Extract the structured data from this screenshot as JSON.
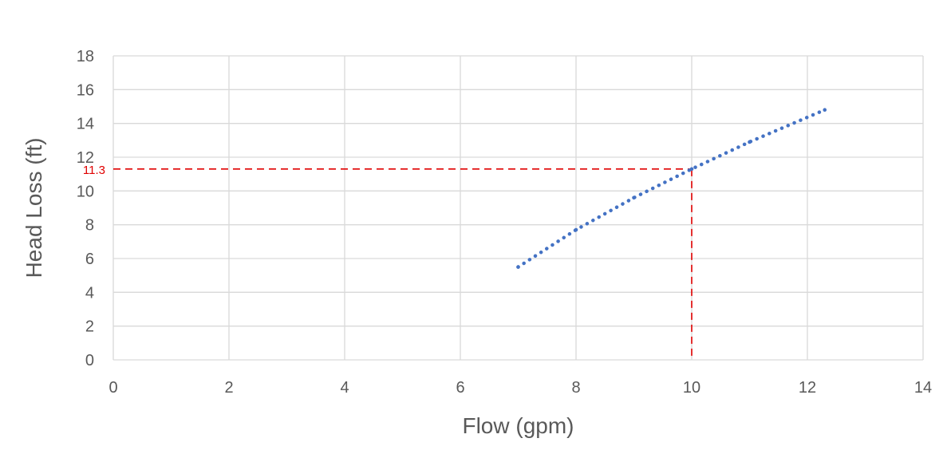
{
  "chart_data": {
    "type": "scatter",
    "title": "",
    "xlabel": "Flow (gpm)",
    "ylabel": "Head Loss (ft)",
    "xlim": [
      0,
      14
    ],
    "ylim": [
      0,
      18
    ],
    "x_ticks": [
      0,
      2,
      4,
      6,
      8,
      10,
      12,
      14
    ],
    "y_ticks": [
      0,
      2,
      4,
      6,
      8,
      10,
      12,
      14,
      16,
      18
    ],
    "grid": true,
    "series": [
      {
        "style": "dotted-line",
        "color": "#4472c4",
        "x": [
          7.0,
          8.0,
          9.0,
          10.0,
          11.0,
          12.3
        ],
        "y": [
          5.5,
          7.7,
          9.6,
          11.3,
          12.9,
          14.8
        ]
      }
    ],
    "reference": {
      "color": "#e00000",
      "x": 10,
      "y": 11.3,
      "x_label": "10",
      "y_label": "11.3"
    }
  }
}
